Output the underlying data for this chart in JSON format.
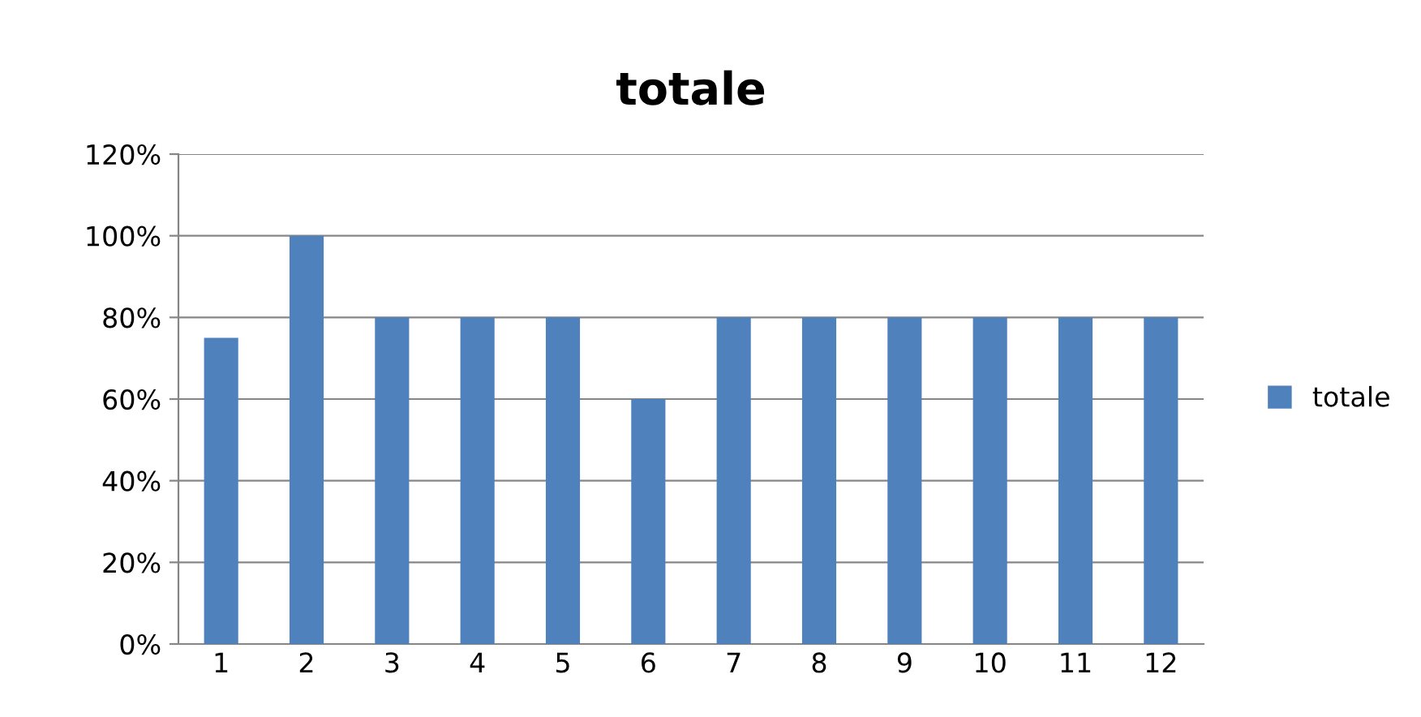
{
  "chart_data": {
    "type": "bar",
    "title": "totale",
    "categories": [
      "1",
      "2",
      "3",
      "4",
      "5",
      "6",
      "7",
      "8",
      "9",
      "10",
      "11",
      "12"
    ],
    "series": [
      {
        "name": "totale",
        "color": "#4f81bd",
        "values": [
          75,
          100,
          80,
          80,
          80,
          60,
          80,
          80,
          80,
          80,
          80,
          80
        ]
      }
    ],
    "ylim": [
      0,
      120
    ],
    "yticks": [
      {
        "value": 0,
        "label": "0%"
      },
      {
        "value": 20,
        "label": "20%"
      },
      {
        "value": 40,
        "label": "40%"
      },
      {
        "value": 60,
        "label": "60%"
      },
      {
        "value": 80,
        "label": "80%"
      },
      {
        "value": 100,
        "label": "100%"
      },
      {
        "value": 120,
        "label": "120%"
      }
    ],
    "grid": "y",
    "legend": "right"
  }
}
